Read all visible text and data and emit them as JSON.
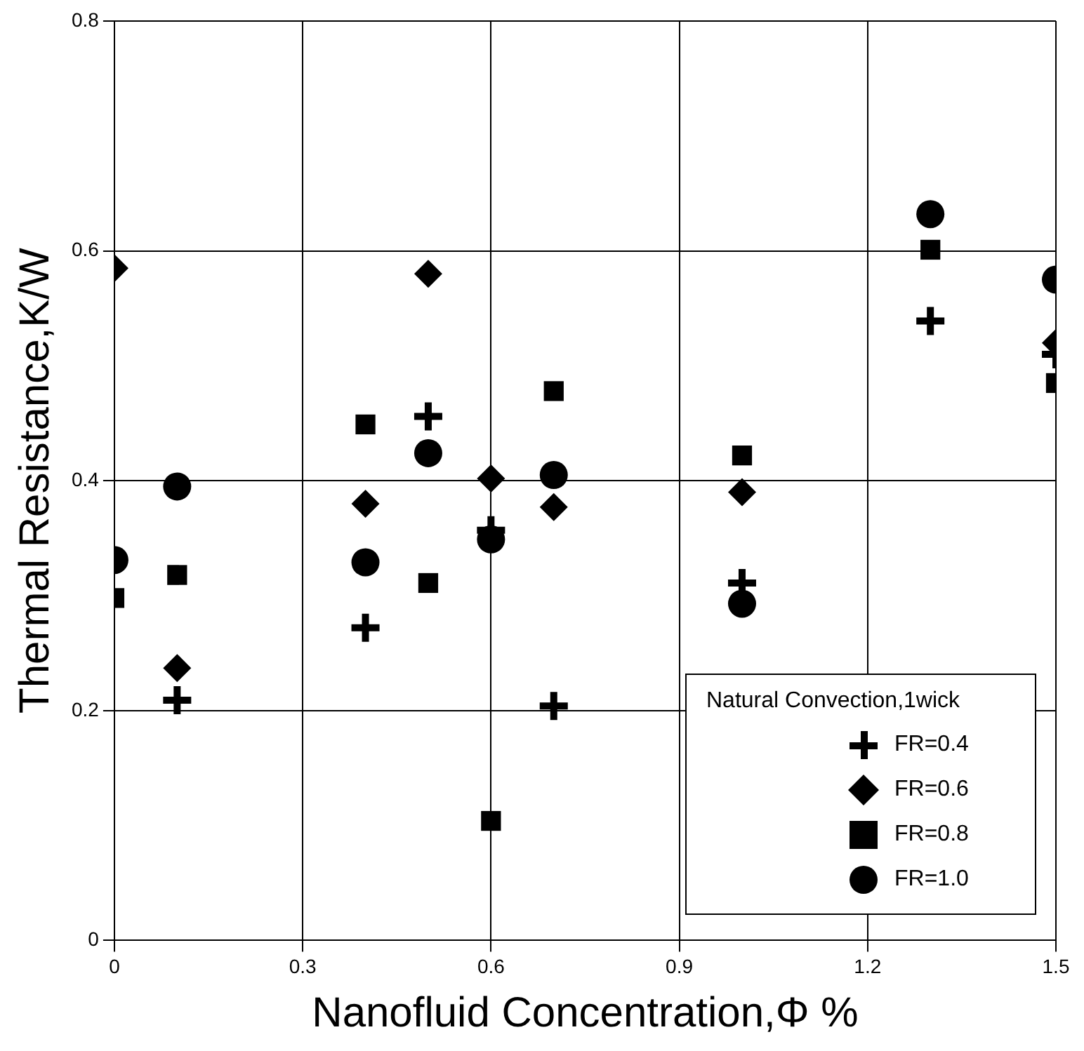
{
  "chart_data": {
    "type": "scatter",
    "xlabel": "Nanofluid Concentration,Φ %",
    "ylabel": "Thermal Resistance,K/W",
    "legend_title": "Natural Convection,1wick",
    "xlim": [
      0,
      1.5
    ],
    "xticks": [
      0,
      0.3,
      0.6,
      0.9,
      1.2,
      1.5
    ],
    "ylim": [
      0,
      0.8
    ],
    "yticks": [
      0,
      0.2,
      0.4,
      0.6,
      0.8
    ],
    "grid": true,
    "legend": "bottom right",
    "series": [
      {
        "name": "FR=0.4",
        "color": "#000000",
        "marker": "cross",
        "x": [
          0.1,
          0.4,
          0.5,
          0.6,
          0.7,
          1.0,
          1.3,
          1.5
        ],
        "values": [
          0.209,
          0.272,
          0.456,
          0.357,
          0.204,
          0.311,
          0.539,
          0.51
        ]
      },
      {
        "name": "FR=0.6",
        "color": "#000000",
        "marker": "diamond",
        "x": [
          0,
          0.1,
          0.4,
          0.5,
          0.6,
          0.7,
          1.0,
          1.5
        ],
        "values": [
          0.585,
          0.237,
          0.38,
          0.58,
          0.402,
          0.377,
          0.39,
          0.52
        ]
      },
      {
        "name": "FR=0.8",
        "color": "#000000",
        "marker": "square",
        "x": [
          0,
          0.1,
          0.4,
          0.5,
          0.6,
          0.7,
          1.0,
          1.3,
          1.5
        ],
        "values": [
          0.298,
          0.318,
          0.449,
          0.311,
          0.104,
          0.478,
          0.422,
          0.601,
          0.485
        ]
      },
      {
        "name": "FR=1.0",
        "color": "#000000",
        "marker": "circle",
        "x": [
          0,
          0.1,
          0.4,
          0.5,
          0.6,
          0.7,
          1.0,
          1.3,
          1.5
        ],
        "values": [
          0.331,
          0.395,
          0.329,
          0.424,
          0.349,
          0.405,
          0.293,
          0.632,
          0.575
        ]
      }
    ]
  }
}
